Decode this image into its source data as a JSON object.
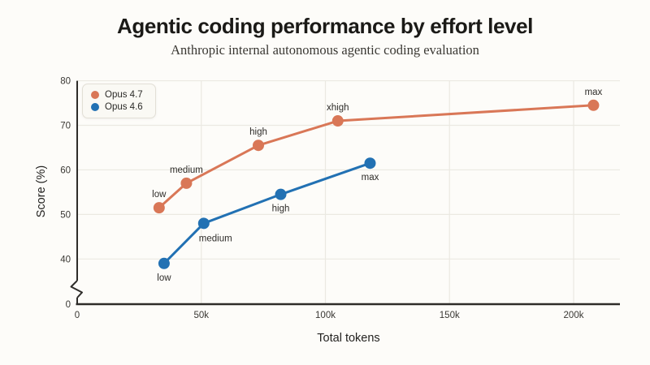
{
  "chart_data": {
    "type": "line",
    "title": "Agentic coding performance by effort level",
    "subtitle": "Anthropic internal autonomous agentic coding evaluation",
    "xlabel": "Total tokens",
    "ylabel": "Score (%)",
    "x_value_unit": "thousands of tokens",
    "x_ticks": [
      {
        "v": 0,
        "label": "0"
      },
      {
        "v": 50,
        "label": "50k"
      },
      {
        "v": 100,
        "label": "100k"
      },
      {
        "v": 150,
        "label": "150k"
      },
      {
        "v": 200,
        "label": "200k"
      }
    ],
    "y_ticks": [
      {
        "v": 40,
        "label": "40"
      },
      {
        "v": 50,
        "label": "50"
      },
      {
        "v": 60,
        "label": "60"
      },
      {
        "v": 70,
        "label": "70"
      },
      {
        "v": 80,
        "label": "80"
      }
    ],
    "ylim_visible": [
      40,
      80
    ],
    "y_axis_break": {
      "shown": true,
      "zero_label": "0"
    },
    "grid": true,
    "legend_position": "top-left",
    "series": [
      {
        "name": "Opus 4.7",
        "color": "#d97757",
        "points": [
          {
            "label": "low",
            "x": 33,
            "y": 51.5,
            "label_side": "above"
          },
          {
            "label": "medium",
            "x": 44,
            "y": 57,
            "label_side": "above"
          },
          {
            "label": "high",
            "x": 73,
            "y": 65.5,
            "label_side": "above"
          },
          {
            "label": "xhigh",
            "x": 105,
            "y": 71,
            "label_side": "above"
          },
          {
            "label": "max",
            "x": 208,
            "y": 74.5,
            "label_side": "above"
          }
        ]
      },
      {
        "name": "Opus 4.6",
        "color": "#2271b3",
        "points": [
          {
            "label": "low",
            "x": 35,
            "y": 39,
            "label_side": "below"
          },
          {
            "label": "medium",
            "x": 51,
            "y": 48,
            "label_side": "below-right"
          },
          {
            "label": "high",
            "x": 82,
            "y": 54.5,
            "label_side": "below"
          },
          {
            "label": "max",
            "x": 118,
            "y": 61.5,
            "label_side": "below"
          }
        ]
      }
    ],
    "colors": {
      "background": "#fdfcf9",
      "gridline": "#ebe9e2",
      "axis": "#2e2c29",
      "tick_text": "#3a3834",
      "title_text": "#1b1a17",
      "legend_bg": "#faf9f4",
      "legend_border": "#e2dfd6"
    }
  }
}
